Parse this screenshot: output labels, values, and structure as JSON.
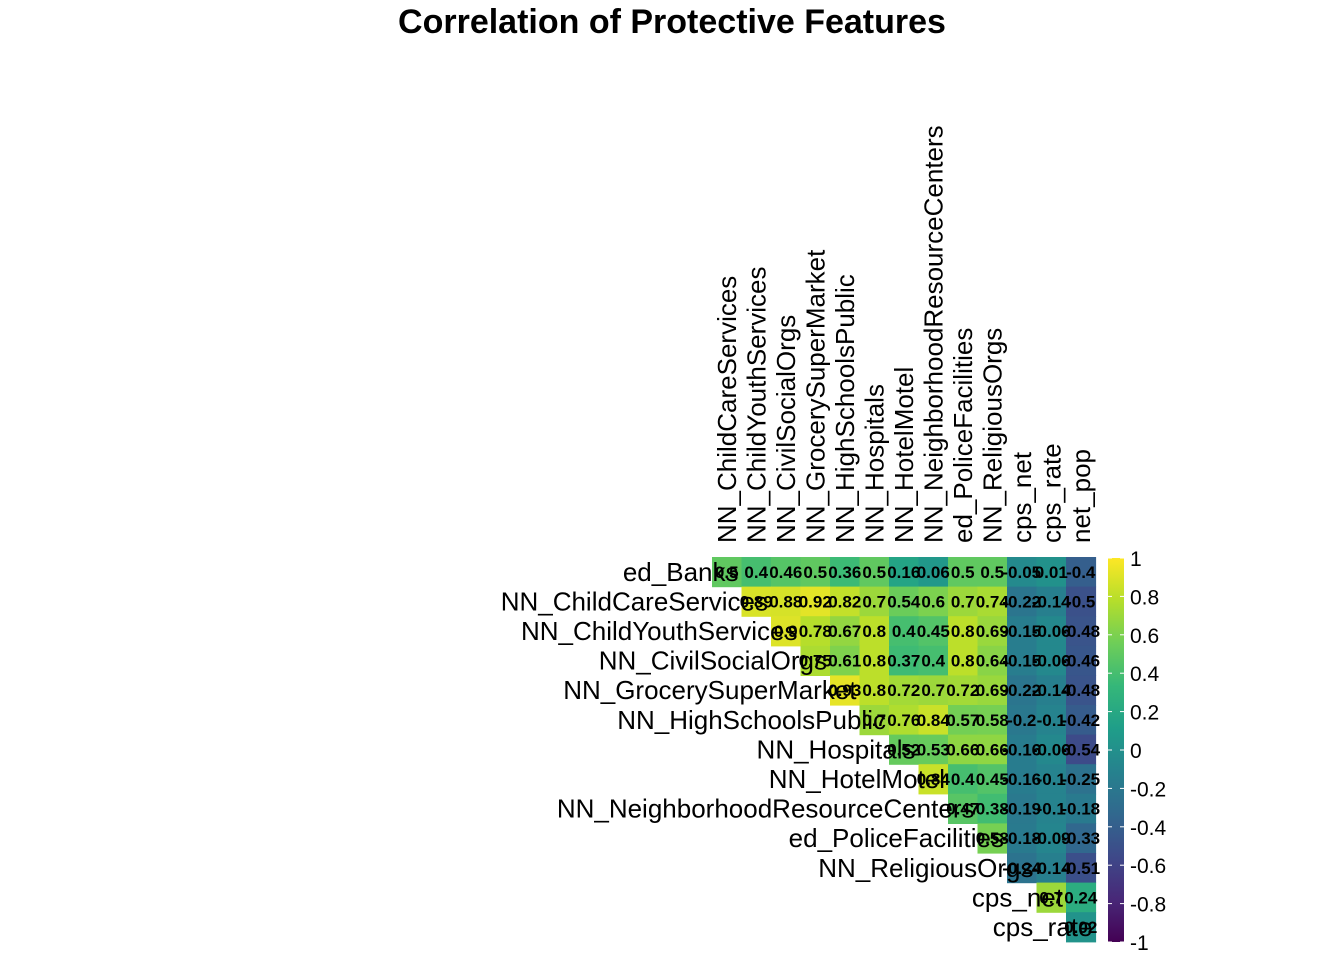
{
  "chart_data": {
    "type": "heatmap",
    "title": "Correlation of Protective Features",
    "layout": "upper-triangular correlation matrix (diagonal omitted)",
    "rows": [
      "ed_Banks",
      "NN_ChildCareServices",
      "NN_ChildYouthServices",
      "NN_CivilSocialOrgs",
      "NN_GrocerySuperMarket",
      "NN_HighSchoolsPublic",
      "NN_Hospitals",
      "NN_HotelMotel",
      "NN_NeighborhoodResourceCenters",
      "ed_PoliceFacilities",
      "NN_ReligiousOrgs",
      "cps_net",
      "cps_rate"
    ],
    "columns": [
      "NN_ChildCareServices",
      "NN_ChildYouthServices",
      "NN_CivilSocialOrgs",
      "NN_GrocerySuperMarket",
      "NN_HighSchoolsPublic",
      "NN_Hospitals",
      "NN_HotelMotel",
      "NN_NeighborhoodResourceCenters",
      "ed_PoliceFacilities",
      "NN_ReligiousOrgs",
      "cps_net",
      "cps_rate",
      "net_pop"
    ],
    "values": [
      [
        0.5,
        0.4,
        0.46,
        0.5,
        0.36,
        0.5,
        0.16,
        0.06,
        0.5,
        0.5,
        -0.05,
        0.01,
        -0.4
      ],
      [
        null,
        0.89,
        0.88,
        0.92,
        0.82,
        0.7,
        0.54,
        0.6,
        0.7,
        0.74,
        -0.22,
        -0.14,
        -0.5
      ],
      [
        null,
        null,
        0.9,
        0.78,
        0.67,
        0.8,
        0.4,
        0.45,
        0.8,
        0.69,
        -0.15,
        -0.06,
        -0.48
      ],
      [
        null,
        null,
        null,
        0.75,
        0.61,
        0.8,
        0.37,
        0.4,
        0.8,
        0.64,
        -0.15,
        -0.06,
        -0.46
      ],
      [
        null,
        null,
        null,
        null,
        0.93,
        0.8,
        0.72,
        0.7,
        0.72,
        0.69,
        -0.22,
        -0.14,
        -0.48
      ],
      [
        null,
        null,
        null,
        null,
        null,
        0.7,
        0.76,
        0.84,
        0.57,
        0.58,
        -0.2,
        -0.1,
        -0.42
      ],
      [
        null,
        null,
        null,
        null,
        null,
        null,
        0.52,
        0.53,
        0.66,
        0.66,
        -0.16,
        -0.06,
        -0.54
      ],
      [
        null,
        null,
        null,
        null,
        null,
        null,
        null,
        0.84,
        0.4,
        0.45,
        -0.16,
        -0.1,
        -0.25
      ],
      [
        null,
        null,
        null,
        null,
        null,
        null,
        null,
        null,
        0.47,
        0.38,
        -0.19,
        -0.1,
        -0.18
      ],
      [
        null,
        null,
        null,
        null,
        null,
        null,
        null,
        null,
        null,
        0.58,
        -0.18,
        -0.09,
        -0.33
      ],
      [
        null,
        null,
        null,
        null,
        null,
        null,
        null,
        null,
        null,
        null,
        -0.24,
        -0.14,
        -0.51
      ],
      [
        null,
        null,
        null,
        null,
        null,
        null,
        null,
        null,
        null,
        null,
        null,
        0.7,
        0.24
      ],
      [
        null,
        null,
        null,
        null,
        null,
        null,
        null,
        null,
        null,
        null,
        null,
        null,
        0.02
      ]
    ],
    "labels": [
      [
        "0.5",
        "0.4",
        "0.46",
        "0.5",
        "0.36",
        "0.5",
        "0.16",
        "0.06",
        "0.5",
        "0.5",
        "-0.05",
        "0.01",
        "-0.4"
      ],
      [
        null,
        "0.89",
        "0.88",
        "0.92",
        "0.82",
        "0.7",
        "0.54",
        "0.6",
        "0.7",
        "0.74",
        "-0.22",
        "-0.14",
        "-0.5"
      ],
      [
        null,
        null,
        "0.9",
        "0.78",
        "0.67",
        "0.8",
        "0.4",
        "0.45",
        "0.8",
        "0.69",
        "-0.15",
        "-0.06",
        "-0.48"
      ],
      [
        null,
        null,
        null,
        "0.75",
        "0.61",
        "0.8",
        "0.37",
        "0.4",
        "0.8",
        "0.64",
        "-0.15",
        "-0.06",
        "-0.46"
      ],
      [
        null,
        null,
        null,
        null,
        "0.93",
        "0.8",
        "0.72",
        "0.7",
        "0.72",
        "0.69",
        "-0.22",
        "-0.14",
        "-0.48"
      ],
      [
        null,
        null,
        null,
        null,
        null,
        "0.7",
        "0.76",
        "0.84",
        "0.57",
        "0.58",
        "-0.2",
        "-0.1",
        "-0.42"
      ],
      [
        null,
        null,
        null,
        null,
        null,
        null,
        "0.52",
        "0.53",
        "0.66",
        "0.66",
        "-0.16",
        "-0.06",
        "-0.54"
      ],
      [
        null,
        null,
        null,
        null,
        null,
        null,
        null,
        "0.84",
        "0.4",
        "0.45",
        "-0.16",
        "-0.1",
        "-0.25"
      ],
      [
        null,
        null,
        null,
        null,
        null,
        null,
        null,
        null,
        "0.47",
        "0.38",
        "-0.19",
        "-0.1",
        "-0.18"
      ],
      [
        null,
        null,
        null,
        null,
        null,
        null,
        null,
        null,
        null,
        "0.58",
        "-0.18",
        "-0.09",
        "-0.33"
      ],
      [
        null,
        null,
        null,
        null,
        null,
        null,
        null,
        null,
        null,
        null,
        "-0.24",
        "-0.14",
        "-0.51"
      ],
      [
        null,
        null,
        null,
        null,
        null,
        null,
        null,
        null,
        null,
        null,
        null,
        "0.7",
        "0.24"
      ],
      [
        null,
        null,
        null,
        null,
        null,
        null,
        null,
        null,
        null,
        null,
        null,
        null,
        "0.02"
      ]
    ],
    "colorbar": {
      "range": [
        -1,
        1
      ],
      "ticks": [
        1,
        0.8,
        0.6,
        0.4,
        0.2,
        0,
        -0.2,
        -0.4,
        -0.6,
        -0.8,
        -1
      ],
      "tick_labels": [
        "1",
        "0.8",
        "0.6",
        "0.4",
        "0.2",
        "0",
        "-0.2",
        "-0.4",
        "-0.6",
        "-0.8",
        "-1"
      ],
      "palette": "viridis",
      "stops": [
        "#440154",
        "#482878",
        "#3e4989",
        "#31688e",
        "#26828e",
        "#1f9e89",
        "#35b779",
        "#6ece58",
        "#b5de2b",
        "#fde725"
      ]
    },
    "grid": false,
    "legend_position": "right"
  }
}
